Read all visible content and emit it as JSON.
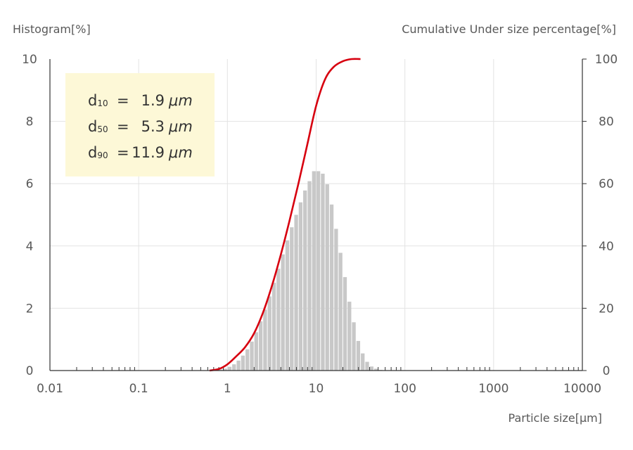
{
  "chart_data": {
    "type": "bar+line",
    "left_axis_title": "Histogram[%]",
    "right_axis_title": "Cumulative Under size percentage[%]",
    "x_axis_title": "Particle size[μm]",
    "x_scale": "log",
    "x_range": [
      0.01,
      10000
    ],
    "x_ticks": [
      {
        "value": 0.01,
        "label": "0.01"
      },
      {
        "value": 0.1,
        "label": "0.1"
      },
      {
        "value": 1,
        "label": "1"
      },
      {
        "value": 10,
        "label": "10"
      },
      {
        "value": 100,
        "label": "100"
      },
      {
        "value": 1000,
        "label": "1000"
      },
      {
        "value": 10000,
        "label": "10000"
      }
    ],
    "y_left_range": [
      0,
      10
    ],
    "y_left_ticks": [
      "0",
      "2",
      "4",
      "6",
      "8",
      "10"
    ],
    "y_right_range": [
      0,
      100
    ],
    "y_right_ticks": [
      "0",
      "20",
      "40",
      "60",
      "80",
      "100"
    ],
    "grid": true,
    "histogram": {
      "color": "#c8c8c8",
      "bins_per_decade": 20,
      "first_bin_start": 0.794,
      "values": [
        0.03,
        0.06,
        0.12,
        0.2,
        0.32,
        0.48,
        0.68,
        0.93,
        1.23,
        1.58,
        1.96,
        2.38,
        2.82,
        3.27,
        3.73,
        4.18,
        4.6,
        5.0,
        5.4,
        5.78,
        6.08,
        6.4,
        6.4,
        6.32,
        5.98,
        5.33,
        4.55,
        3.78,
        3.0,
        2.21,
        1.55,
        0.95,
        0.55,
        0.28,
        0.13,
        0.06,
        0.02
      ]
    },
    "cumulative": {
      "color": "#d7000f",
      "x": [
        0.63,
        0.8,
        1.0,
        1.26,
        1.58,
        2.0,
        2.51,
        3.16,
        3.98,
        5.0,
        6.31,
        7.94,
        10.0,
        12.6,
        15.8,
        20.0,
        25.1,
        31.6
      ],
      "y": [
        0,
        0.5,
        2.0,
        4.6,
        7.5,
        12.0,
        18.5,
        27.0,
        37.0,
        48.0,
        60.0,
        72.5,
        85.0,
        93.5,
        97.5,
        99.3,
        100,
        100
      ]
    },
    "annotation": {
      "box_color": "#fdf8d7",
      "lines": [
        {
          "label": "d",
          "sub": "10",
          "eq": "=",
          "value": "1.9",
          "unit": "μm"
        },
        {
          "label": "d",
          "sub": "50",
          "eq": "=",
          "value": "5.3",
          "unit": "μm"
        },
        {
          "label": "d",
          "sub": "90",
          "eq": "=",
          "value": "11.9",
          "unit": "μm"
        }
      ]
    }
  }
}
